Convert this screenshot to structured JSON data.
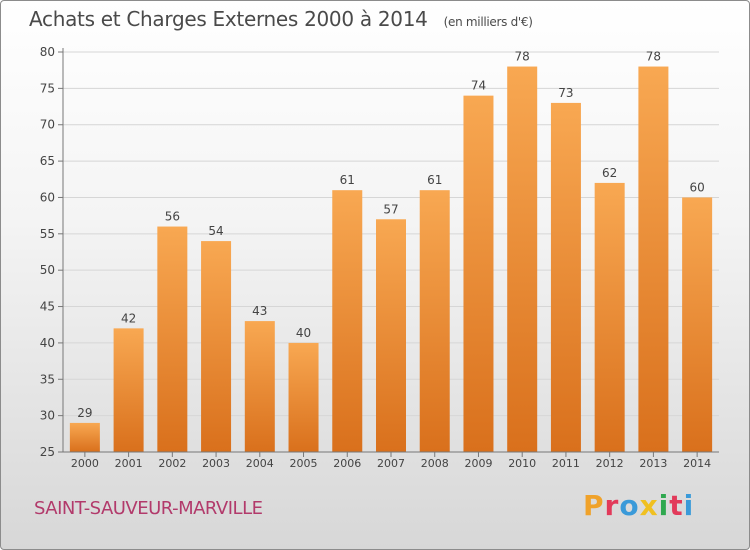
{
  "header": {
    "title": "Achats et Charges Externes 2000 à 2014",
    "unit": "(en milliers d'€)"
  },
  "footer": {
    "commune": "SAINT-SAUVEUR-MARVILLE",
    "brand_letters": [
      "P",
      "r",
      "o",
      "x",
      "i",
      "t",
      "i"
    ],
    "brand_colors": [
      "#f0a22a",
      "#e23a5a",
      "#3a9ad9",
      "#f0c020",
      "#2fa84f",
      "#e23a5a",
      "#3a9ad9"
    ]
  },
  "chart_data": {
    "type": "bar",
    "title": "Achats et Charges Externes 2000 à 2014",
    "subtitle": "(en milliers d'€)",
    "categories": [
      "2000",
      "2001",
      "2002",
      "2003",
      "2004",
      "2005",
      "2006",
      "2007",
      "2008",
      "2009",
      "2010",
      "2011",
      "2012",
      "2013",
      "2014"
    ],
    "values": [
      29,
      42,
      56,
      54,
      43,
      40,
      61,
      57,
      61,
      74,
      78,
      73,
      62,
      78,
      60
    ],
    "ylim": [
      25,
      80
    ],
    "yticks": [
      25,
      30,
      35,
      40,
      45,
      50,
      55,
      60,
      65,
      70,
      75,
      80
    ],
    "grid": true,
    "colors": {
      "bar_top": "#f8a852",
      "bar_bottom": "#d9701c",
      "grid": "#d6d6d6",
      "axis_text": "#444444"
    }
  }
}
